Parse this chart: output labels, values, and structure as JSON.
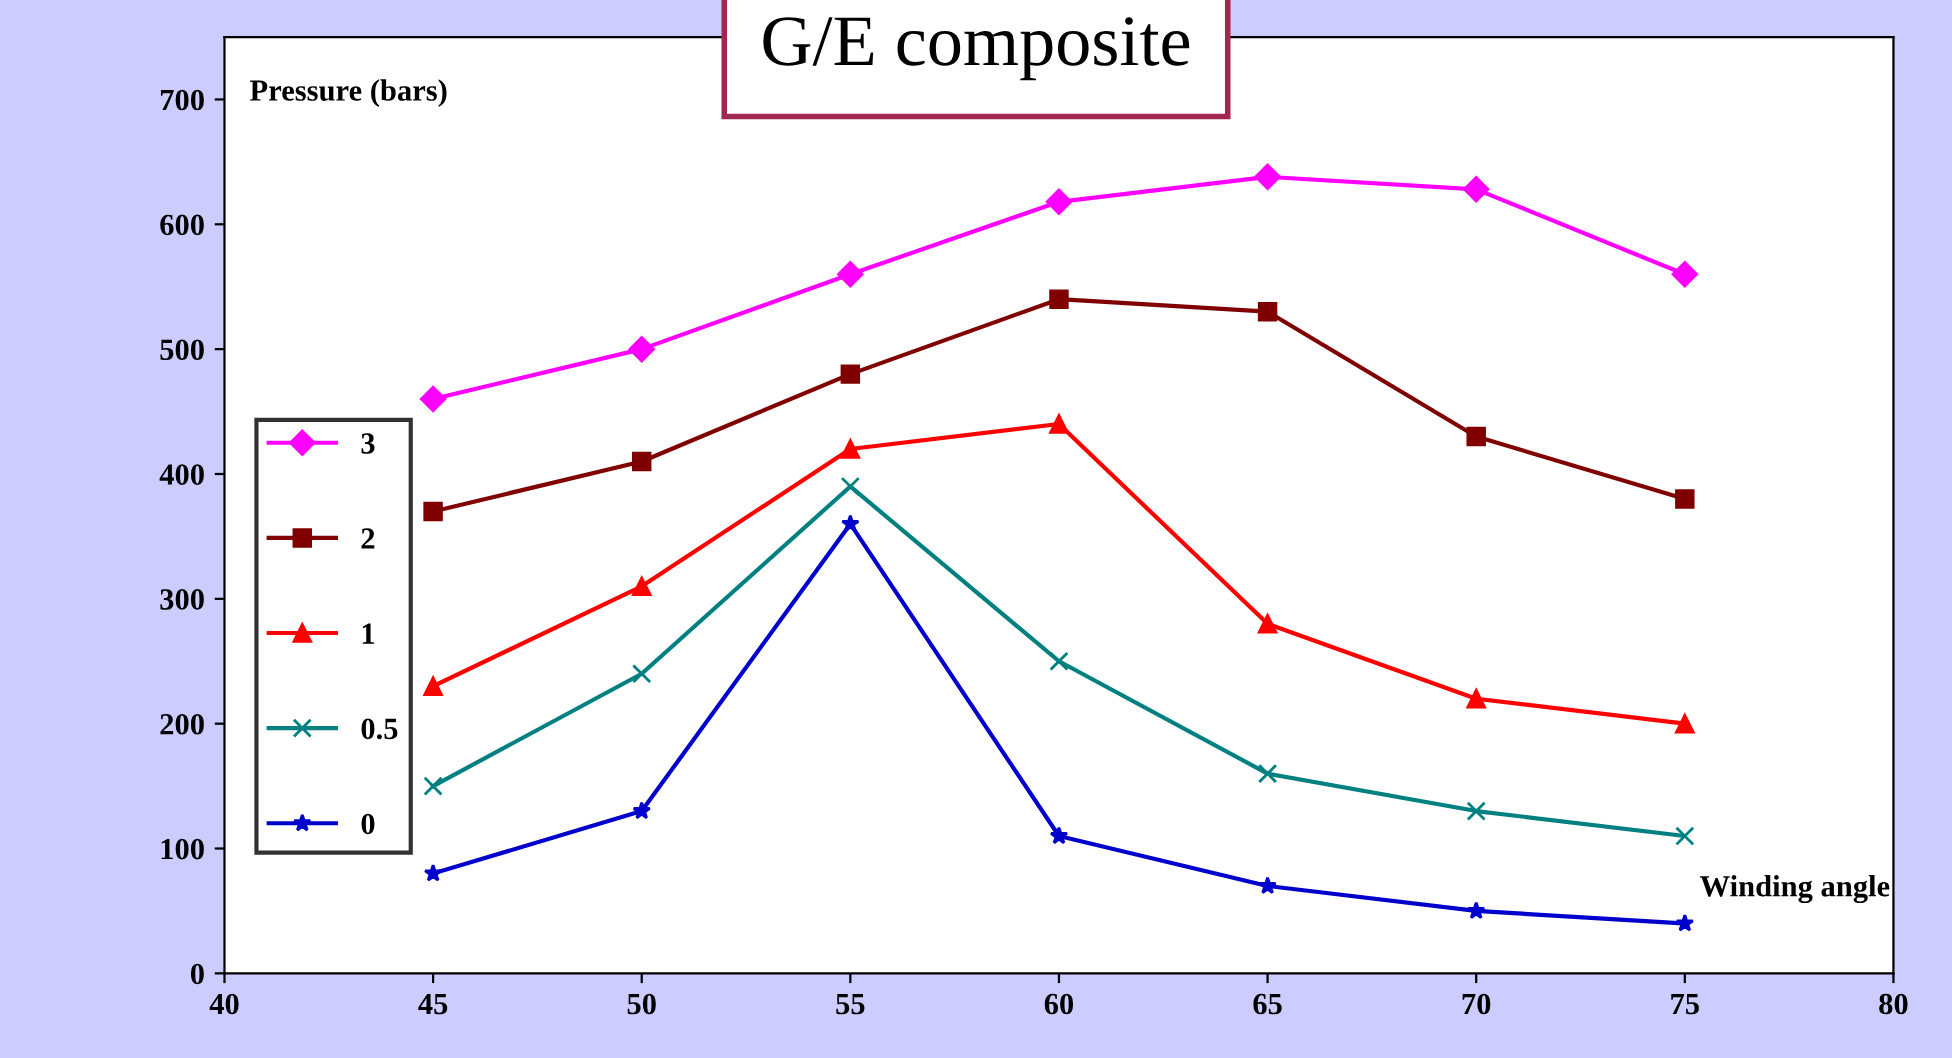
{
  "chart_data": {
    "type": "line",
    "title": "G/E composite",
    "xlabel": "Winding angle",
    "ylabel": "Pressure (bars)",
    "x": [
      45,
      50,
      55,
      60,
      65,
      70,
      75
    ],
    "series": [
      {
        "name": "3",
        "color": "#ff00ff",
        "marker": "diamond",
        "values": [
          460,
          500,
          560,
          618,
          638,
          628,
          560
        ]
      },
      {
        "name": "2",
        "color": "#800000",
        "marker": "square",
        "values": [
          370,
          410,
          480,
          540,
          530,
          430,
          380
        ]
      },
      {
        "name": "1",
        "color": "#ff0000",
        "marker": "triangle",
        "values": [
          230,
          310,
          420,
          440,
          280,
          220,
          200
        ]
      },
      {
        "name": "0.5",
        "color": "#008080",
        "marker": "cross",
        "values": [
          150,
          240,
          390,
          250,
          160,
          130,
          110
        ]
      },
      {
        "name": "0",
        "color": "#0000cc",
        "marker": "star",
        "values": [
          80,
          130,
          360,
          110,
          70,
          50,
          40
        ]
      }
    ],
    "xlim": [
      40,
      80
    ],
    "xticks": [
      40,
      45,
      50,
      55,
      60,
      65,
      70,
      75,
      80
    ],
    "ylim": [
      0,
      750
    ],
    "yticks": [
      0,
      100,
      200,
      300,
      400,
      500,
      600,
      700
    ],
    "grid": false,
    "legend": "left"
  }
}
